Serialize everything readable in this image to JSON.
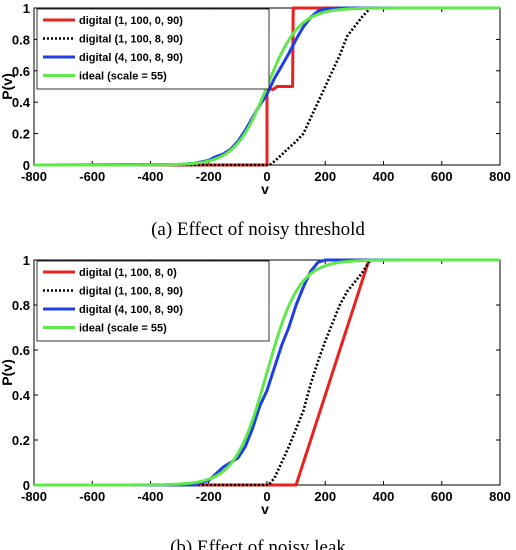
{
  "chart_data": [
    {
      "type": "line",
      "caption": "(a) Effect of noisy threshold",
      "xlabel": "v",
      "ylabel": "P(v)",
      "xlim": [
        -800,
        800
      ],
      "ylim": [
        0,
        1
      ],
      "xticks": [
        "-800",
        "-600",
        "-400",
        "-200",
        "0",
        "200",
        "400",
        "600",
        "800"
      ],
      "yticks": [
        "0",
        "0.2",
        "0.4",
        "0.6",
        "0.8",
        "1"
      ],
      "grid": false,
      "legend_position": "top-left",
      "series": [
        {
          "name": "digital (1, 100, 0, 90)",
          "color": "#e8231f",
          "style": "solid",
          "points": [
            [
              -800,
              0
            ],
            [
              0,
              0
            ],
            [
              0,
              0.5
            ],
            [
              2,
              0.49
            ],
            [
              20,
              0.48
            ],
            [
              35,
              0.5
            ],
            [
              60,
              0.5
            ],
            [
              88,
              0.5
            ],
            [
              90,
              1
            ],
            [
              800,
              1
            ]
          ]
        },
        {
          "name": "digital (1, 100, 8, 90)",
          "color": "#000000",
          "style": "dotted",
          "points": [
            [
              -800,
              0
            ],
            [
              10,
              0
            ],
            [
              30,
              0.03
            ],
            [
              70,
              0.1
            ],
            [
              100,
              0.15
            ],
            [
              125,
              0.2
            ],
            [
              150,
              0.3
            ],
            [
              175,
              0.4
            ],
            [
              200,
              0.5
            ],
            [
              225,
              0.6
            ],
            [
              250,
              0.7
            ],
            [
              275,
              0.82
            ],
            [
              300,
              0.88
            ],
            [
              325,
              0.94
            ],
            [
              355,
              1
            ],
            [
              800,
              1
            ]
          ]
        },
        {
          "name": "digital (4, 100, 8, 90)",
          "color": "#1f3fe6",
          "style": "solid",
          "points": [
            [
              -800,
              0
            ],
            [
              -300,
              0.003
            ],
            [
              -250,
              0.01
            ],
            [
              -200,
              0.03
            ],
            [
              -180,
              0.05
            ],
            [
              -150,
              0.07
            ],
            [
              -125,
              0.1
            ],
            [
              -100,
              0.15
            ],
            [
              -75,
              0.22
            ],
            [
              -50,
              0.3
            ],
            [
              -25,
              0.38
            ],
            [
              0,
              0.45
            ],
            [
              25,
              0.55
            ],
            [
              50,
              0.63
            ],
            [
              75,
              0.71
            ],
            [
              100,
              0.8
            ],
            [
              125,
              0.88
            ],
            [
              150,
              0.94
            ],
            [
              175,
              0.98
            ],
            [
              200,
              0.995
            ],
            [
              250,
              1
            ],
            [
              800,
              1
            ]
          ]
        },
        {
          "name": "ideal (scale = 55)",
          "color": "#5ee84a",
          "style": "solid",
          "logistic": {
            "center": 0,
            "scale": 55
          }
        }
      ]
    },
    {
      "type": "line",
      "caption": "(b) Effect of noisy leak",
      "xlabel": "v",
      "ylabel": "P(v)",
      "xlim": [
        -800,
        800
      ],
      "ylim": [
        0,
        1
      ],
      "xticks": [
        "-800",
        "-600",
        "-400",
        "-200",
        "0",
        "200",
        "400",
        "600",
        "800"
      ],
      "yticks": [
        "0",
        "0.2",
        "0.4",
        "0.6",
        "0.8",
        "1"
      ],
      "grid": false,
      "legend_position": "top-left",
      "series": [
        {
          "name": "digital (1, 100, 8, 0)",
          "color": "#e8231f",
          "style": "solid",
          "points": [
            [
              -800,
              0
            ],
            [
              100,
              0
            ],
            [
              150,
              0.2
            ],
            [
              200,
              0.4
            ],
            [
              250,
              0.6
            ],
            [
              300,
              0.8
            ],
            [
              350,
              1
            ],
            [
              800,
              1
            ]
          ]
        },
        {
          "name": "digital (1, 100, 8, 90)",
          "color": "#000000",
          "style": "dotted",
          "points": [
            [
              -800,
              0
            ],
            [
              5,
              0
            ],
            [
              25,
              0.03
            ],
            [
              50,
              0.1
            ],
            [
              75,
              0.17
            ],
            [
              100,
              0.25
            ],
            [
              125,
              0.33
            ],
            [
              150,
              0.45
            ],
            [
              175,
              0.55
            ],
            [
              200,
              0.64
            ],
            [
              225,
              0.72
            ],
            [
              250,
              0.8
            ],
            [
              275,
              0.86
            ],
            [
              300,
              0.9
            ],
            [
              325,
              0.94
            ],
            [
              355,
              1
            ],
            [
              800,
              1
            ]
          ]
        },
        {
          "name": "digital (4, 100, 8, 90)",
          "color": "#1f3fe6",
          "style": "solid",
          "points": [
            [
              -800,
              0
            ],
            [
              -250,
              0
            ],
            [
              -200,
              0.02
            ],
            [
              -175,
              0.05
            ],
            [
              -150,
              0.08
            ],
            [
              -125,
              0.1
            ],
            [
              -100,
              0.12
            ],
            [
              -75,
              0.17
            ],
            [
              -50,
              0.25
            ],
            [
              -25,
              0.35
            ],
            [
              0,
              0.42
            ],
            [
              25,
              0.52
            ],
            [
              50,
              0.62
            ],
            [
              75,
              0.7
            ],
            [
              100,
              0.8
            ],
            [
              125,
              0.88
            ],
            [
              150,
              0.95
            ],
            [
              175,
              0.99
            ],
            [
              200,
              1
            ],
            [
              800,
              1
            ]
          ]
        },
        {
          "name": "ideal (scale = 55)",
          "color": "#5ee84a",
          "style": "solid",
          "logistic": {
            "center": 0,
            "scale": 55
          }
        }
      ]
    }
  ]
}
